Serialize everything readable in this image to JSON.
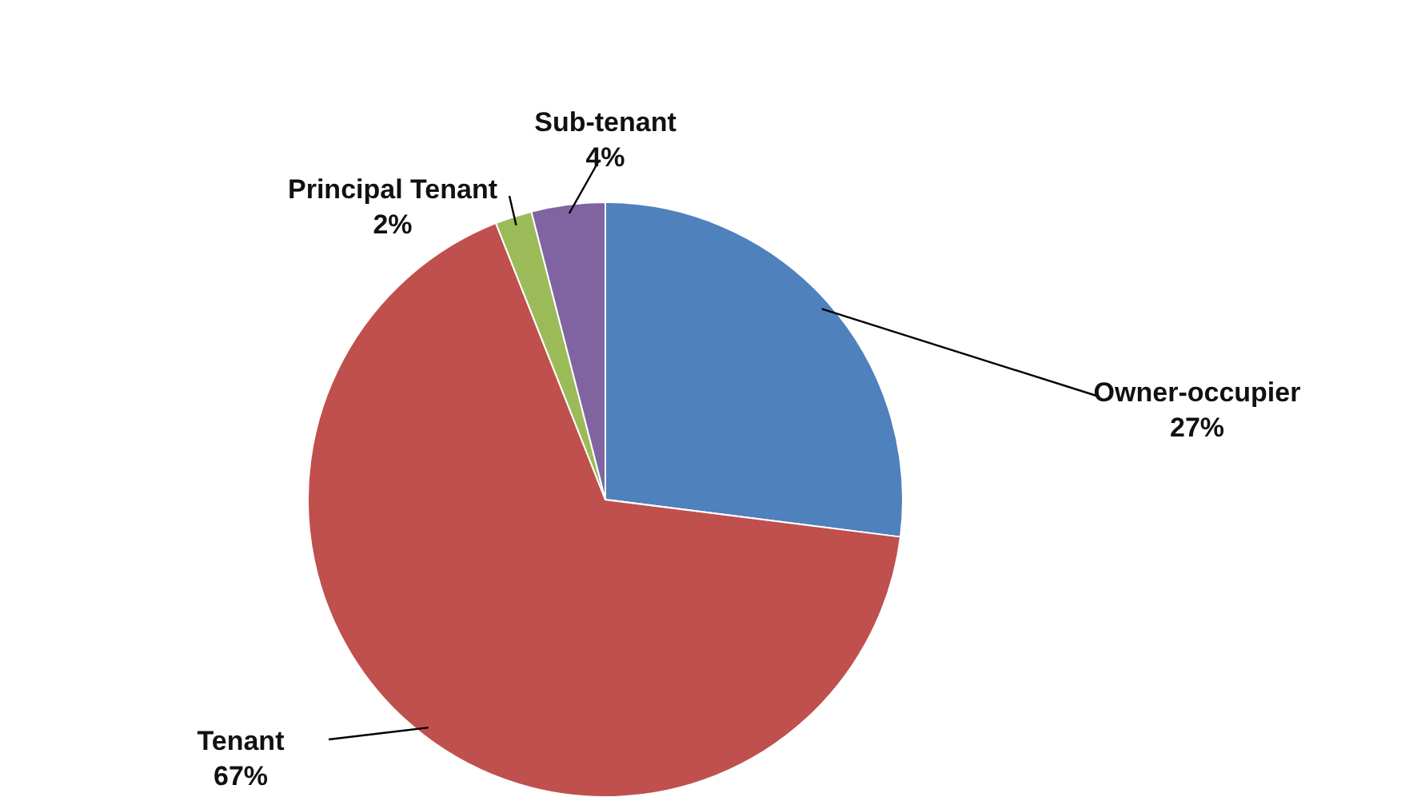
{
  "chart_data": {
    "type": "pie",
    "categories": [
      "Owner-occupier",
      "Tenant",
      "Principal Tenant",
      "Sub-tenant"
    ],
    "values": [
      27,
      67,
      2,
      4
    ],
    "value_labels": [
      "27%",
      "67%",
      "2%",
      "4%"
    ],
    "colors": [
      "#4f81bd",
      "#c0504d",
      "#9bbb59",
      "#8064a2"
    ]
  }
}
